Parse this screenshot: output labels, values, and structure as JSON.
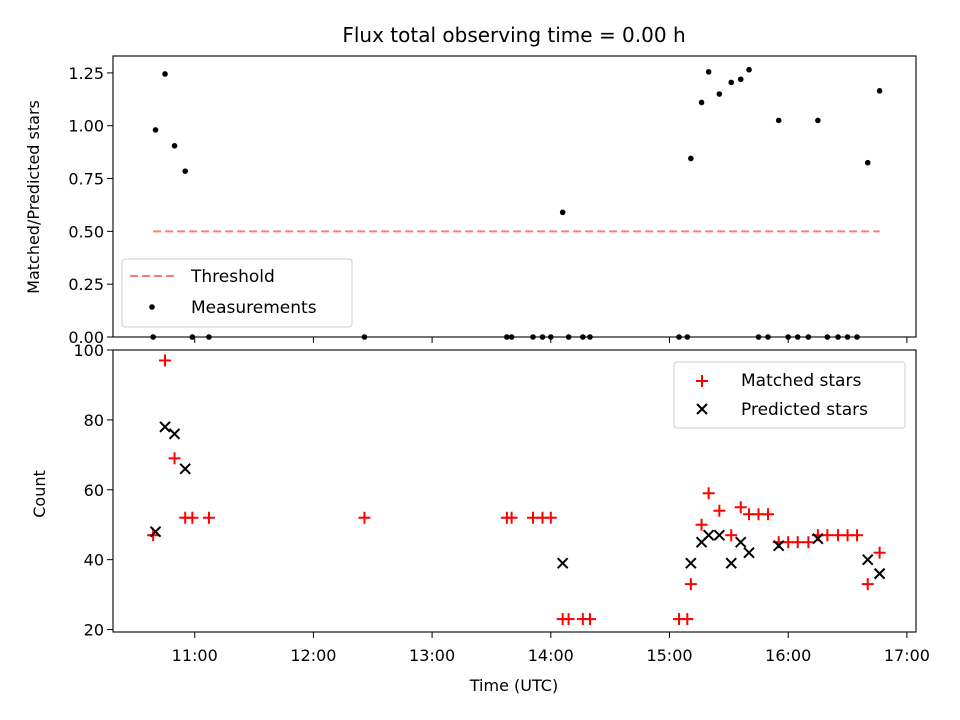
{
  "chart_data": [
    {
      "type": "scatter",
      "title": "Flux total observing time = 0.00 h",
      "ylabel": "Matched/Predicted stars",
      "xlabel": "",
      "xlim": [
        10.3117,
        17.0767
      ],
      "ylim": [
        0.0,
        1.33
      ],
      "grid": false,
      "legend_position": "lower-left",
      "yticks": [
        {
          "v": 0.0,
          "label": "0.00"
        },
        {
          "v": 0.25,
          "label": "0.25"
        },
        {
          "v": 0.5,
          "label": "0.50"
        },
        {
          "v": 0.75,
          "label": "0.75"
        },
        {
          "v": 1.0,
          "label": "1.00"
        },
        {
          "v": 1.25,
          "label": "1.25"
        }
      ],
      "xticks": [
        11,
        12,
        13,
        14,
        15,
        16,
        17
      ],
      "threshold": {
        "name": "Threshold",
        "value": 0.5,
        "x": [
          10.65,
          16.77
        ],
        "color": "#ff7b7b"
      },
      "series": [
        {
          "name": "Measurements",
          "color": "#000000",
          "points": [
            [
              10.65,
              0.0
            ],
            [
              10.67,
              0.98
            ],
            [
              10.75,
              1.245
            ],
            [
              10.83,
              0.905
            ],
            [
              10.92,
              0.785
            ],
            [
              10.98,
              0.0
            ],
            [
              11.12,
              0.0
            ],
            [
              12.43,
              0.0
            ],
            [
              13.63,
              0.0
            ],
            [
              13.67,
              0.0
            ],
            [
              13.85,
              0.0
            ],
            [
              13.93,
              0.0
            ],
            [
              14.0,
              0.0
            ],
            [
              14.1,
              0.59
            ],
            [
              14.15,
              0.0
            ],
            [
              14.27,
              0.0
            ],
            [
              14.33,
              0.0
            ],
            [
              15.08,
              0.0
            ],
            [
              15.15,
              0.0
            ],
            [
              15.18,
              0.845
            ],
            [
              15.27,
              1.11
            ],
            [
              15.33,
              1.255
            ],
            [
              15.42,
              1.15
            ],
            [
              15.52,
              1.205
            ],
            [
              15.6,
              1.22
            ],
            [
              15.67,
              1.265
            ],
            [
              15.75,
              0.0
            ],
            [
              15.83,
              0.0
            ],
            [
              15.92,
              1.025
            ],
            [
              16.0,
              0.0
            ],
            [
              16.08,
              0.0
            ],
            [
              16.17,
              0.0
            ],
            [
              16.25,
              1.025
            ],
            [
              16.33,
              0.0
            ],
            [
              16.42,
              0.0
            ],
            [
              16.5,
              0.0
            ],
            [
              16.58,
              0.0
            ],
            [
              16.67,
              0.825
            ],
            [
              16.77,
              1.165
            ]
          ]
        }
      ]
    },
    {
      "type": "scatter",
      "title": "",
      "ylabel": "Count",
      "xlabel": "Time (UTC)",
      "xlim": [
        10.3117,
        17.0767
      ],
      "ylim": [
        19.3,
        100.0
      ],
      "grid": false,
      "legend_position": "upper-right",
      "yticks": [
        {
          "v": 20,
          "label": "20"
        },
        {
          "v": 40,
          "label": "40"
        },
        {
          "v": 60,
          "label": "60"
        },
        {
          "v": 80,
          "label": "80"
        },
        {
          "v": 100,
          "label": "100"
        }
      ],
      "xticks": [
        {
          "v": 11,
          "label": "11:00"
        },
        {
          "v": 12,
          "label": "12:00"
        },
        {
          "v": 13,
          "label": "13:00"
        },
        {
          "v": 14,
          "label": "14:00"
        },
        {
          "v": 15,
          "label": "15:00"
        },
        {
          "v": 16,
          "label": "16:00"
        },
        {
          "v": 17,
          "label": "17:00"
        }
      ],
      "series": [
        {
          "name": "Matched stars",
          "marker": "plus",
          "color": "#ff0000",
          "points": [
            [
              10.65,
              47
            ],
            [
              10.75,
              97
            ],
            [
              10.83,
              69
            ],
            [
              10.92,
              52
            ],
            [
              10.98,
              52
            ],
            [
              11.12,
              52
            ],
            [
              12.43,
              52
            ],
            [
              13.63,
              52
            ],
            [
              13.67,
              52
            ],
            [
              13.85,
              52
            ],
            [
              13.93,
              52
            ],
            [
              14.0,
              52
            ],
            [
              14.1,
              23
            ],
            [
              14.15,
              23
            ],
            [
              14.27,
              23
            ],
            [
              14.33,
              23
            ],
            [
              15.08,
              23
            ],
            [
              15.15,
              23
            ],
            [
              15.18,
              33
            ],
            [
              15.27,
              50
            ],
            [
              15.33,
              59
            ],
            [
              15.42,
              54
            ],
            [
              15.52,
              47
            ],
            [
              15.6,
              55
            ],
            [
              15.67,
              53
            ],
            [
              15.75,
              53
            ],
            [
              15.83,
              53
            ],
            [
              15.92,
              45
            ],
            [
              16.0,
              45
            ],
            [
              16.08,
              45
            ],
            [
              16.17,
              45
            ],
            [
              16.25,
              47
            ],
            [
              16.33,
              47
            ],
            [
              16.42,
              47
            ],
            [
              16.5,
              47
            ],
            [
              16.58,
              47
            ],
            [
              16.67,
              33
            ],
            [
              16.77,
              42
            ]
          ]
        },
        {
          "name": "Predicted stars",
          "marker": "x",
          "color": "#000000",
          "points": [
            [
              10.67,
              48
            ],
            [
              10.75,
              78
            ],
            [
              10.83,
              76
            ],
            [
              10.92,
              66
            ],
            [
              14.1,
              39
            ],
            [
              15.18,
              39
            ],
            [
              15.27,
              45
            ],
            [
              15.33,
              47
            ],
            [
              15.42,
              47
            ],
            [
              15.52,
              39
            ],
            [
              15.6,
              45
            ],
            [
              15.67,
              42
            ],
            [
              15.92,
              44
            ],
            [
              16.25,
              46
            ],
            [
              16.67,
              40
            ],
            [
              16.77,
              36
            ]
          ]
        }
      ]
    }
  ]
}
